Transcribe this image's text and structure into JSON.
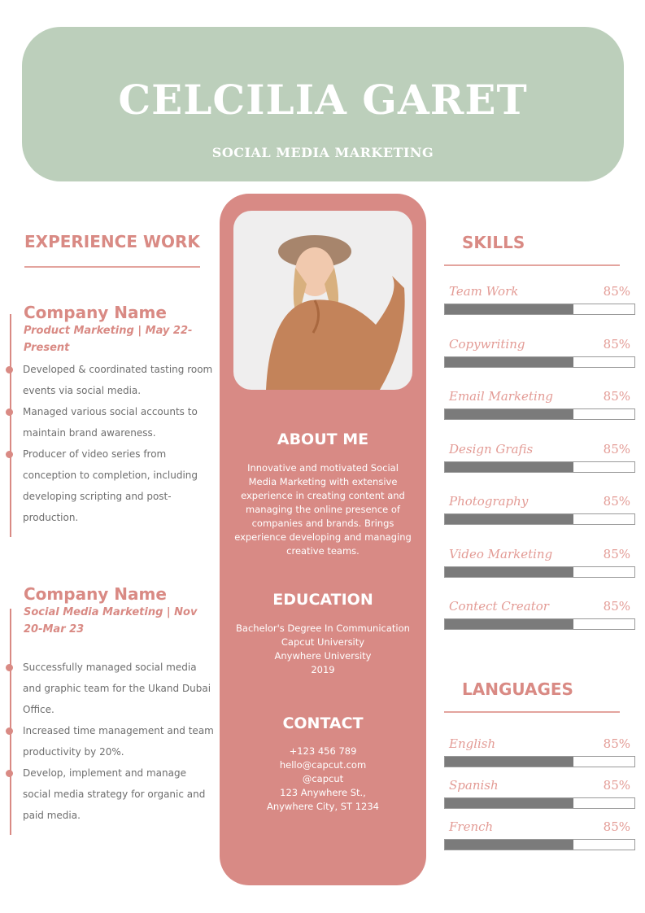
{
  "header": {
    "name": "CELCILIA GARET",
    "title": "SOCIAL MEDIA MARKETING"
  },
  "experience": {
    "title": "EXPERIENCE WORK",
    "jobs": [
      {
        "company": "Company Name",
        "role": "Product Marketing | May 22-Present",
        "bullets": [
          "Developed & coordinated tasting room events via social media.",
          "Managed various social accounts to maintain brand awareness.",
          "Producer of video series from conception to completion, including developing scripting and post-production."
        ]
      },
      {
        "company": "Company Name",
        "role": "Social Media Marketing | Nov 20-Mar 23",
        "bullets": [
          "Successfully managed social media and graphic team for the Ukand Dubai Office.",
          "Increased time management and team productivity by 20%.",
          "Develop, implement and manage social media strategy for organic and paid media."
        ]
      }
    ]
  },
  "about": {
    "title": "ABOUT ME",
    "text": "Innovative and motivated Social Media Marketing with extensive experience in creating content and managing the online presence of companies and brands. Brings experience developing and managing creative teams."
  },
  "education": {
    "title": "EDUCATION",
    "lines": [
      "Bachelor's Degree In Communication",
      "Capcut University",
      "Anywhere University",
      "2019"
    ]
  },
  "contact": {
    "title": "CONTACT",
    "lines": [
      "+123  456 789",
      "hello@capcut.com",
      "@capcut",
      "123 Anywhere St.,",
      "Anywhere City, ST 1234"
    ]
  },
  "skills": {
    "title": "SKILLS",
    "items": [
      {
        "name": "Team Work",
        "pct": "85%",
        "fill": 0.68
      },
      {
        "name": "Copywriting",
        "pct": "85%",
        "fill": 0.68
      },
      {
        "name": "Email Marketing",
        "pct": "85%",
        "fill": 0.68
      },
      {
        "name": "Design Grafis",
        "pct": "85%",
        "fill": 0.68
      },
      {
        "name": "Photography",
        "pct": "85%",
        "fill": 0.68
      },
      {
        "name": "Video Marketing",
        "pct": "85%",
        "fill": 0.68
      },
      {
        "name": "Contect Creator",
        "pct": "85%",
        "fill": 0.68
      }
    ]
  },
  "languages": {
    "title": "LANGUAGES",
    "items": [
      {
        "name": "English",
        "pct": "85%",
        "fill": 0.68
      },
      {
        "name": "Spanish",
        "pct": "85%",
        "fill": 0.68
      },
      {
        "name": "French",
        "pct": "85%",
        "fill": 0.68
      }
    ]
  },
  "colors": {
    "accent": "#d98a84",
    "header_bg": "#bccfbb",
    "center_bg": "#d88a85",
    "bar_fill": "#7b7b7b"
  }
}
